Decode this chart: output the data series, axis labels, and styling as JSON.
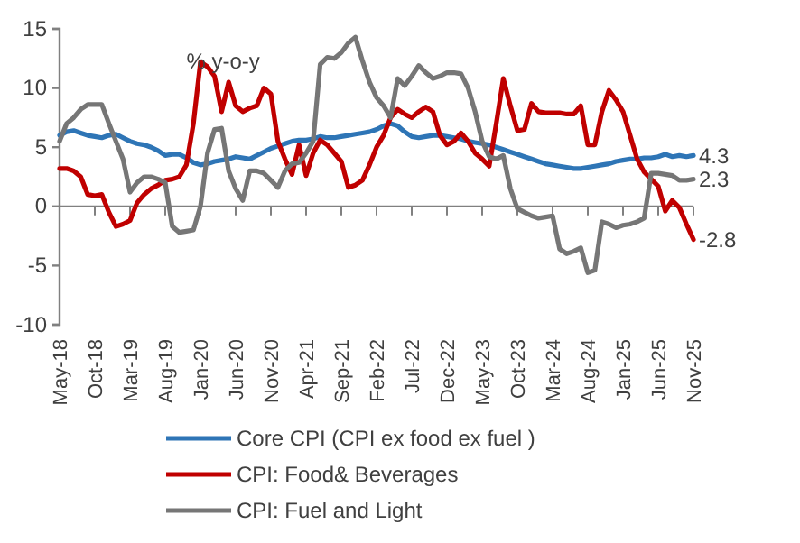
{
  "chart_data": {
    "type": "line",
    "categories": [
      "May-18",
      null,
      null,
      null,
      null,
      "Oct-18",
      null,
      null,
      null,
      null,
      "Mar-19",
      null,
      null,
      null,
      null,
      "Aug-19",
      null,
      null,
      null,
      null,
      "Jan-20",
      null,
      null,
      null,
      null,
      "Jun-20",
      null,
      null,
      null,
      null,
      "Nov-20",
      null,
      null,
      null,
      null,
      "Apr-21",
      null,
      null,
      null,
      null,
      "Sep-21",
      null,
      null,
      null,
      null,
      "Feb-22",
      null,
      null,
      null,
      null,
      "Jul-22",
      null,
      null,
      null,
      null,
      "Dec-22",
      null,
      null,
      null,
      null,
      "May-23",
      null,
      null,
      null,
      null,
      "Oct-23",
      null,
      null,
      null,
      null,
      "Mar-24",
      null,
      null,
      null,
      null,
      "Aug-24",
      null,
      null,
      null,
      null,
      "Jan-25",
      null,
      null,
      null,
      null,
      "Jun-25",
      null,
      null,
      null,
      null,
      "Nov-25"
    ],
    "series": [
      {
        "name": "Core CPI (CPI ex food ex fuel )",
        "color": "#2e75b6",
        "values": [
          6.0,
          6.3,
          6.4,
          6.2,
          6.0,
          5.9,
          5.8,
          6.0,
          6.1,
          5.8,
          5.5,
          5.3,
          5.2,
          5.0,
          4.7,
          4.3,
          4.4,
          4.4,
          4.1,
          3.7,
          3.5,
          3.6,
          3.8,
          3.9,
          4.0,
          4.2,
          4.1,
          4.0,
          4.3,
          4.6,
          4.9,
          5.1,
          5.3,
          5.5,
          5.6,
          5.6,
          5.7,
          5.9,
          5.8,
          5.8,
          5.9,
          6.0,
          6.1,
          6.2,
          6.3,
          6.5,
          6.8,
          7.0,
          6.8,
          6.3,
          5.9,
          5.8,
          5.9,
          6.0,
          6.0,
          5.9,
          5.8,
          5.7,
          5.5,
          5.4,
          5.3,
          5.2,
          5.0,
          4.8,
          4.6,
          4.4,
          4.2,
          4.0,
          3.8,
          3.6,
          3.5,
          3.4,
          3.3,
          3.2,
          3.2,
          3.3,
          3.4,
          3.5,
          3.6,
          3.8,
          3.9,
          4.0,
          4.0,
          4.1,
          4.1,
          4.2,
          4.4,
          4.2,
          4.3,
          4.2,
          4.3
        ]
      },
      {
        "name": "CPI: Food& Beverages",
        "color": "#c00000",
        "values": [
          3.2,
          3.2,
          3.0,
          2.5,
          1.0,
          0.9,
          1.0,
          -0.5,
          -1.7,
          -1.5,
          -1.2,
          0.3,
          1.0,
          1.5,
          1.8,
          2.2,
          2.3,
          2.5,
          3.5,
          7.0,
          12.2,
          11.8,
          11.0,
          8.0,
          10.5,
          8.5,
          8.0,
          8.3,
          8.5,
          10.0,
          9.5,
          5.5,
          4.0,
          2.7,
          5.2,
          2.6,
          4.5,
          5.6,
          5.2,
          4.5,
          3.8,
          1.6,
          1.8,
          2.2,
          3.5,
          5.0,
          6.0,
          7.5,
          8.2,
          7.8,
          7.5,
          8.0,
          8.4,
          8.0,
          6.0,
          5.2,
          5.5,
          6.2,
          5.5,
          4.5,
          4.0,
          3.4,
          7.0,
          10.8,
          8.5,
          6.4,
          6.5,
          8.7,
          8.0,
          7.9,
          7.9,
          7.9,
          7.8,
          7.8,
          8.5,
          5.2,
          5.2,
          8.0,
          9.8,
          9.0,
          8.0,
          6.0,
          4.0,
          2.9,
          2.3,
          1.7,
          -0.4,
          0.5,
          -0.1,
          -1.5,
          -2.8
        ]
      },
      {
        "name": "CPI: Fuel and Light",
        "color": "#767676",
        "values": [
          5.5,
          7.0,
          7.5,
          8.2,
          8.6,
          8.6,
          8.6,
          7.0,
          5.5,
          4.0,
          1.2,
          2.0,
          2.5,
          2.5,
          2.3,
          2.0,
          -1.7,
          -2.2,
          -2.1,
          -2.0,
          0.0,
          4.5,
          6.5,
          6.6,
          3.0,
          1.5,
          0.5,
          3.0,
          3.0,
          2.8,
          2.2,
          1.6,
          3.0,
          3.6,
          3.7,
          4.5,
          5.5,
          12.0,
          12.6,
          12.5,
          13.0,
          13.8,
          14.3,
          12.3,
          10.5,
          9.2,
          8.5,
          7.5,
          10.8,
          10.2,
          11.0,
          11.9,
          11.3,
          10.8,
          11.0,
          11.3,
          11.3,
          11.2,
          10.0,
          8.0,
          5.5,
          4.2,
          4.0,
          4.3,
          1.5,
          -0.2,
          -0.5,
          -0.8,
          -1.0,
          -0.9,
          -0.8,
          -3.6,
          -4.0,
          -3.8,
          -3.5,
          -5.6,
          -5.4,
          -1.3,
          -1.5,
          -1.8,
          -1.6,
          -1.5,
          -1.3,
          -1.0,
          2.8,
          2.8,
          2.7,
          2.6,
          2.2,
          2.2,
          2.3
        ]
      }
    ],
    "ylim": [
      -10,
      15
    ],
    "yticks": [
      -10,
      -5,
      0,
      5,
      10,
      15
    ],
    "annotations": [
      "% y-o-y",
      {
        "text": "4.3",
        "x": "Nov-25",
        "y": 4.3
      },
      {
        "text": "2.3",
        "x": "Nov-25",
        "y": 2.3
      },
      {
        "text": "-2.8",
        "x": "Nov-25",
        "y": -2.8
      }
    ],
    "legend": "bottom",
    "marker": "none",
    "line_style": "solid"
  }
}
